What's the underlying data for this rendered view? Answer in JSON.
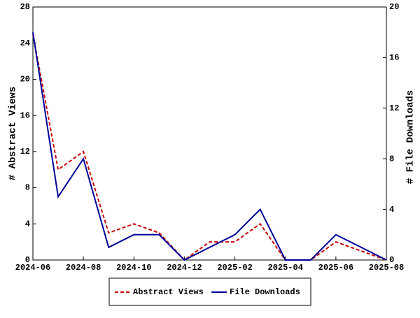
{
  "chart_data": {
    "type": "line",
    "categories": [
      "2024-06",
      null,
      "2024-08",
      null,
      "2024-10",
      null,
      "2024-12",
      null,
      "2025-02",
      null,
      "2025-04",
      null,
      "2025-06",
      null,
      "2025-08"
    ],
    "ylabel": "# Abstract Views",
    "y2label": "# File Downloads",
    "ylim": [
      0,
      28
    ],
    "yticks": [
      0,
      4,
      8,
      12,
      16,
      20,
      24,
      28
    ],
    "y2lim": [
      0,
      20
    ],
    "y2ticks": [
      0,
      4,
      8,
      12,
      16,
      20
    ],
    "legend": "bottom",
    "series": [
      {
        "name": "Abstract Views",
        "color": "#cc0000",
        "dashed": true,
        "values": [
          25,
          10,
          12,
          3,
          4,
          3,
          0,
          2,
          2,
          4,
          0,
          0,
          2,
          1,
          0
        ]
      },
      {
        "name": "File Downloads",
        "color": "#000099",
        "axis": "y2",
        "values": [
          18,
          5,
          8,
          1,
          2,
          2,
          0,
          1,
          2,
          4,
          0,
          0,
          2,
          1,
          0
        ]
      }
    ]
  }
}
